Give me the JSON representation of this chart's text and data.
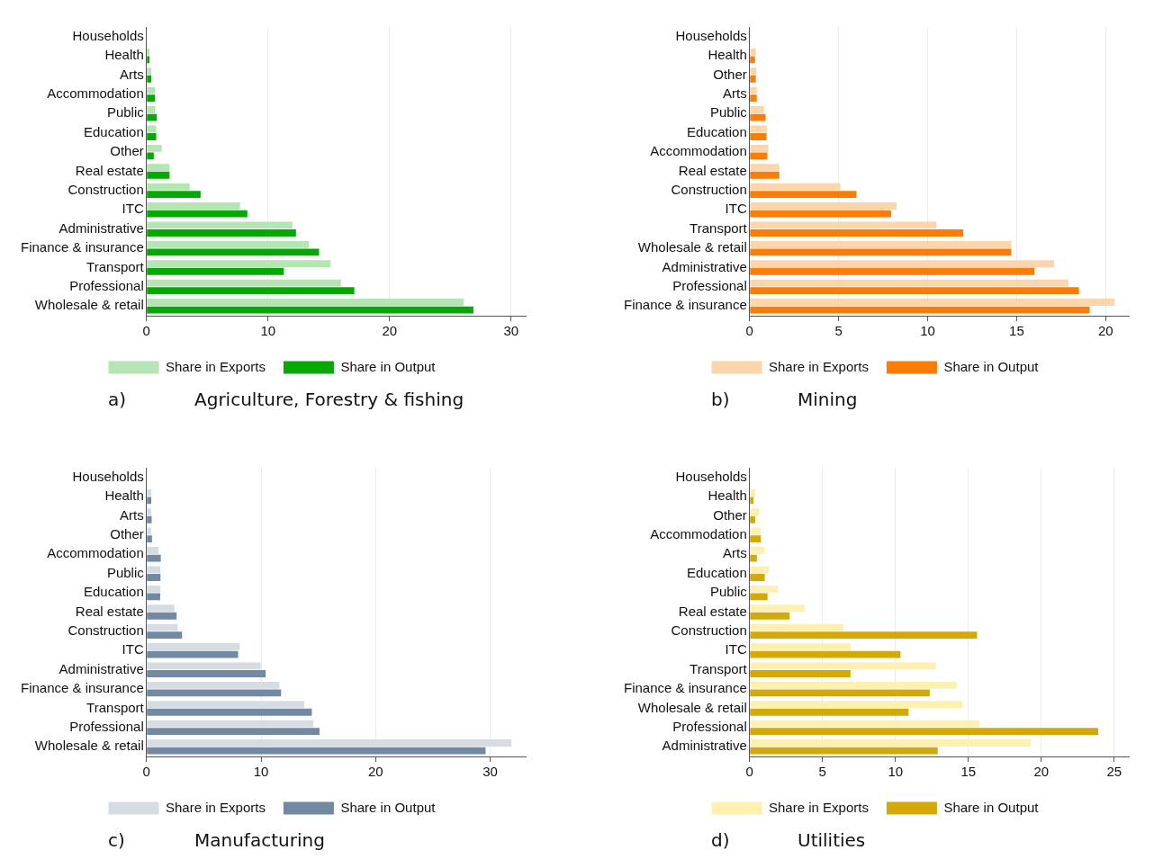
{
  "chart_data": [
    {
      "type": "bar",
      "orientation": "horizontal",
      "title": "Agriculture, Forestry & fishing",
      "subtitle": "a)",
      "categories": [
        "Households",
        "Health",
        "Arts",
        "Accommodation",
        "Public",
        "Education",
        "Other",
        "Real estate",
        "Construction",
        "ITC",
        "Administrative",
        "Finance & insurance",
        "Transport",
        "Professional",
        "Wholesale & retail"
      ],
      "series": [
        {
          "name": "Share in Exports",
          "color": "#b3e6b3",
          "values": [
            null,
            0.25,
            0.4,
            0.7,
            0.7,
            0.8,
            1.25,
            1.9,
            3.55,
            7.7,
            12.0,
            13.35,
            15.15,
            16.0,
            26.1
          ]
        },
        {
          "name": "Share in Output",
          "color": "#06a806",
          "values": [
            null,
            0.25,
            0.4,
            0.7,
            0.85,
            0.8,
            0.6,
            1.9,
            4.45,
            8.3,
            12.3,
            14.2,
            11.3,
            17.1,
            26.9
          ]
        }
      ],
      "xlim": [
        0,
        31.2
      ],
      "xticks": [
        0,
        10,
        20,
        30
      ],
      "grid": "x",
      "legend": "bottom"
    },
    {
      "type": "bar",
      "orientation": "horizontal",
      "title": "Mining",
      "subtitle": "b)",
      "categories": [
        "Households",
        "Health",
        "Other",
        "Arts",
        "Public",
        "Education",
        "Accommodation",
        "Real estate",
        "Construction",
        "ITC",
        "Transport",
        "Wholesale & retail",
        "Administrative",
        "Professional",
        "Finance & insurance"
      ],
      "series": [
        {
          "name": "Share in Exports",
          "color": "#fdd5aa",
          "values": [
            null,
            0.35,
            0.38,
            0.4,
            0.8,
            0.97,
            1.05,
            1.67,
            5.1,
            8.25,
            10.5,
            14.7,
            17.1,
            17.9,
            20.5
          ]
        },
        {
          "name": "Share in Output",
          "color": "#fb7d08",
          "values": [
            null,
            0.3,
            0.35,
            0.4,
            0.9,
            0.95,
            1.0,
            1.67,
            6.0,
            7.95,
            12.0,
            14.7,
            16.0,
            18.5,
            19.1
          ]
        }
      ],
      "xlim": [
        0,
        21.3
      ],
      "xticks": [
        0,
        5,
        10,
        15,
        20
      ],
      "grid": "x",
      "legend": "bottom"
    },
    {
      "type": "bar",
      "orientation": "horizontal",
      "title": "Manufacturing",
      "subtitle": "c)",
      "categories": [
        "Households",
        "Health",
        "Arts",
        "Other",
        "Accommodation",
        "Public",
        "Education",
        "Real estate",
        "Construction",
        "ITC",
        "Administrative",
        "Finance & insurance",
        "Transport",
        "Professional",
        "Wholesale & retail"
      ],
      "series": [
        {
          "name": "Share in Exports",
          "color": "#d5dde3",
          "values": [
            null,
            0.42,
            0.42,
            0.42,
            1.05,
            1.2,
            1.22,
            2.44,
            2.73,
            8.14,
            9.97,
            11.6,
            13.77,
            14.56,
            31.86
          ]
        },
        {
          "name": "Share in Output",
          "color": "#7189a2",
          "values": [
            null,
            0.42,
            0.45,
            0.48,
            1.25,
            1.22,
            1.2,
            2.63,
            3.1,
            8.0,
            10.4,
            11.75,
            14.43,
            15.1,
            29.6
          ]
        }
      ],
      "xlim": [
        0,
        33.1
      ],
      "xticks": [
        0,
        10,
        20,
        30
      ],
      "grid": "x",
      "legend": "bottom"
    },
    {
      "type": "bar",
      "orientation": "horizontal",
      "title": "Utilities",
      "subtitle": "d)",
      "categories": [
        "Households",
        "Health",
        "Other",
        "Accommodation",
        "Arts",
        "Education",
        "Public",
        "Real estate",
        "Construction",
        "ITC",
        "Transport",
        "Finance & insurance",
        "Wholesale & retail",
        "Professional",
        "Administrative"
      ],
      "series": [
        {
          "name": "Share in Exports",
          "color": "#fdf0b0",
          "values": [
            null,
            0.4,
            0.65,
            0.75,
            1.02,
            1.33,
            1.96,
            3.77,
            6.42,
            6.92,
            12.77,
            14.2,
            14.6,
            15.77,
            19.3
          ]
        },
        {
          "name": "Share in Output",
          "color": "#d2a906",
          "values": [
            null,
            0.27,
            0.38,
            0.77,
            0.5,
            1.04,
            1.23,
            2.75,
            15.6,
            10.35,
            6.92,
            12.35,
            10.9,
            23.9,
            12.9
          ]
        }
      ],
      "xlim": [
        0,
        26
      ],
      "xticks": [
        0,
        5,
        10,
        15,
        20,
        25
      ],
      "grid": "x",
      "legend": "bottom"
    }
  ]
}
